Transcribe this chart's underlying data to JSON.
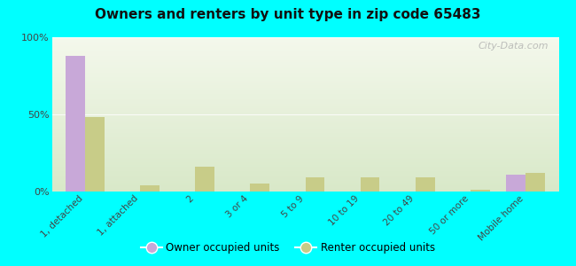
{
  "title": "Owners and renters by unit type in zip code 65483",
  "categories": [
    "1, detached",
    "1, attached",
    "2",
    "3 or 4",
    "5 to 9",
    "10 to 19",
    "20 to 49",
    "50 or more",
    "Mobile home"
  ],
  "owner_values": [
    88,
    0,
    0,
    0,
    0,
    0,
    0,
    0,
    11
  ],
  "renter_values": [
    48,
    4,
    16,
    5,
    9,
    9,
    9,
    1,
    12
  ],
  "owner_color": "#c8a8d8",
  "renter_color": "#c8cc88",
  "background_color": "#00ffff",
  "plot_bg_top": "#d8e8c8",
  "plot_bg_bottom": "#f4f8ec",
  "ylim": [
    0,
    100
  ],
  "yticks": [
    0,
    50,
    100
  ],
  "ytick_labels": [
    "0%",
    "50%",
    "100%"
  ],
  "bar_width": 0.35,
  "legend_owner": "Owner occupied units",
  "legend_renter": "Renter occupied units",
  "watermark": "City-Data.com"
}
